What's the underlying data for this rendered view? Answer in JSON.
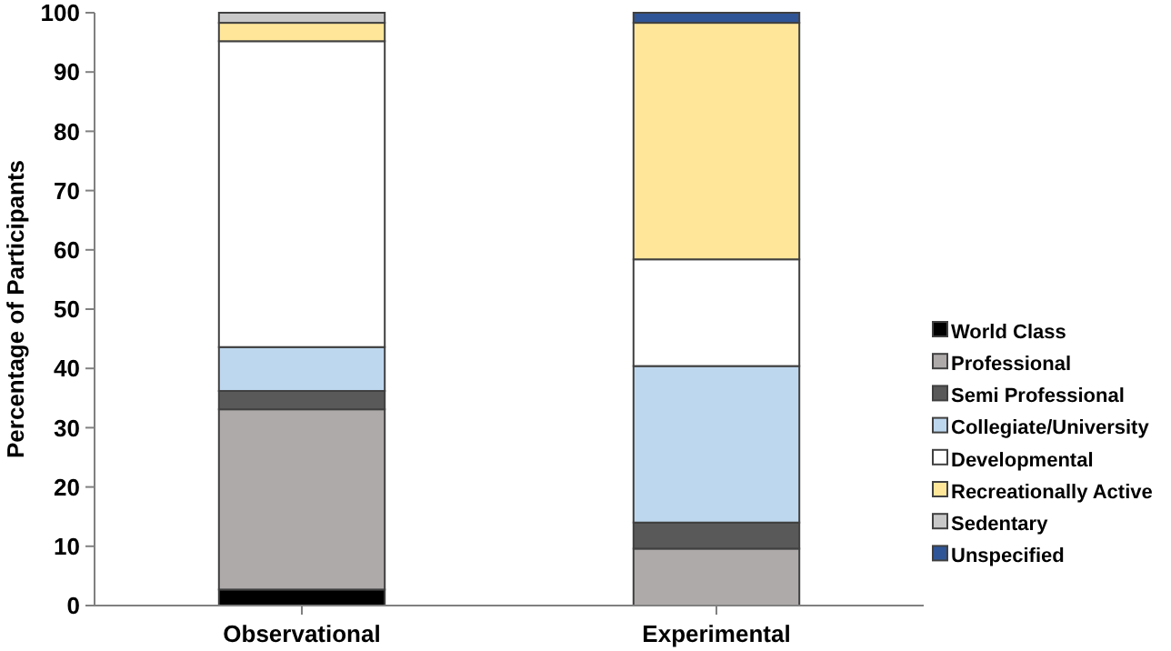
{
  "chart_data": {
    "type": "bar",
    "stacked": true,
    "ylabel": "Percentage of Participants",
    "categories": [
      "Observational",
      "Experimental"
    ],
    "ylim": [
      0,
      100
    ],
    "yticks": [
      0,
      10,
      20,
      30,
      40,
      50,
      60,
      70,
      80,
      90,
      100
    ],
    "grid": false,
    "legend": "right",
    "series": [
      {
        "name": "World Class",
        "color": "#000000",
        "values": [
          2.7,
          0
        ]
      },
      {
        "name": "Professional",
        "color": "#aeaaaa",
        "values": [
          30.4,
          9.6
        ]
      },
      {
        "name": "Semi Professional",
        "color": "#595959",
        "values": [
          3.1,
          4.4
        ]
      },
      {
        "name": "Collegiate/University",
        "color": "#bdd7ee",
        "values": [
          7.4,
          26.4
        ]
      },
      {
        "name": "Developmental",
        "color": "#ffffff",
        "values": [
          51.6,
          18.0
        ]
      },
      {
        "name": "Recreationally Active",
        "color": "#ffe699",
        "values": [
          3.1,
          39.9
        ]
      },
      {
        "name": "Sedentary",
        "color": "#c8c8c8",
        "values": [
          1.7,
          0
        ]
      },
      {
        "name": "Unspecified",
        "color": "#2f5597",
        "values": [
          0,
          1.7
        ]
      }
    ]
  }
}
